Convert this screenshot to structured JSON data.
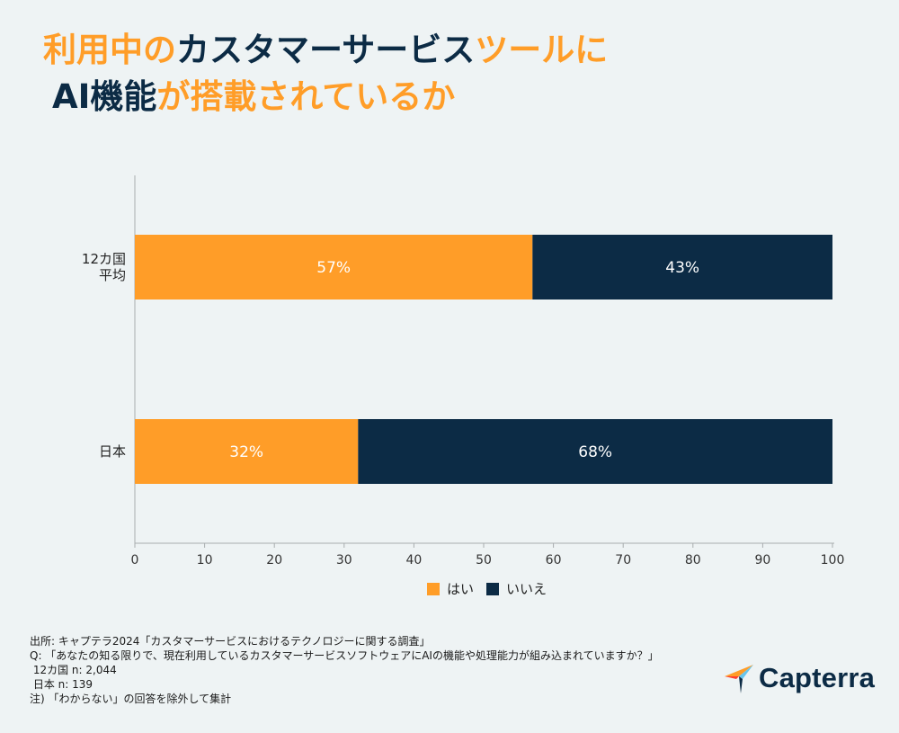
{
  "title": {
    "line1": [
      {
        "text": "利用中の",
        "color": "orange"
      },
      {
        "text": "カスタマーサービス",
        "color": "navy"
      },
      {
        "text": "ツールに",
        "color": "orange"
      }
    ],
    "line2": [
      {
        "text": "AI機能",
        "color": "navy"
      },
      {
        "text": "が搭載されているか",
        "color": "orange"
      }
    ]
  },
  "colors": {
    "orange": "#ff9d28",
    "navy": "#0c2b45",
    "axis": "#999999"
  },
  "chart_data": {
    "type": "bar",
    "orientation": "horizontal",
    "stacked": true,
    "categories": [
      [
        "12カ国",
        "平均"
      ],
      [
        "日本"
      ]
    ],
    "series": [
      {
        "name": "はい",
        "color": "#ff9d28",
        "values": [
          57,
          32
        ],
        "labels": [
          "57%",
          "32%"
        ]
      },
      {
        "name": "いいえ",
        "color": "#0c2b45",
        "values": [
          43,
          68
        ],
        "labels": [
          "43%",
          "68%"
        ]
      }
    ],
    "xlim": [
      0,
      100
    ],
    "xticks": [
      0,
      10,
      20,
      30,
      40,
      50,
      60,
      70,
      80,
      90,
      100
    ],
    "grid": false,
    "legend_position": "bottom-center"
  },
  "footer": {
    "source": "出所: キャプテラ2024「カスタマーサービスにおけるテクノロジーに関する調査」",
    "question": "Q: 「あなたの知る限りで、現在利用しているカスタマーサービスソフトウェアにAIの機能や処理能力が組み込まれていますか？」",
    "n_avg": " 12カ国 n: 2,044",
    "n_japan": " 日本 n: 139",
    "note": "注) 「わからない」の回答を除外して集計"
  },
  "logo": {
    "text": "Capterra",
    "icon": "capterra-arrow-icon"
  }
}
